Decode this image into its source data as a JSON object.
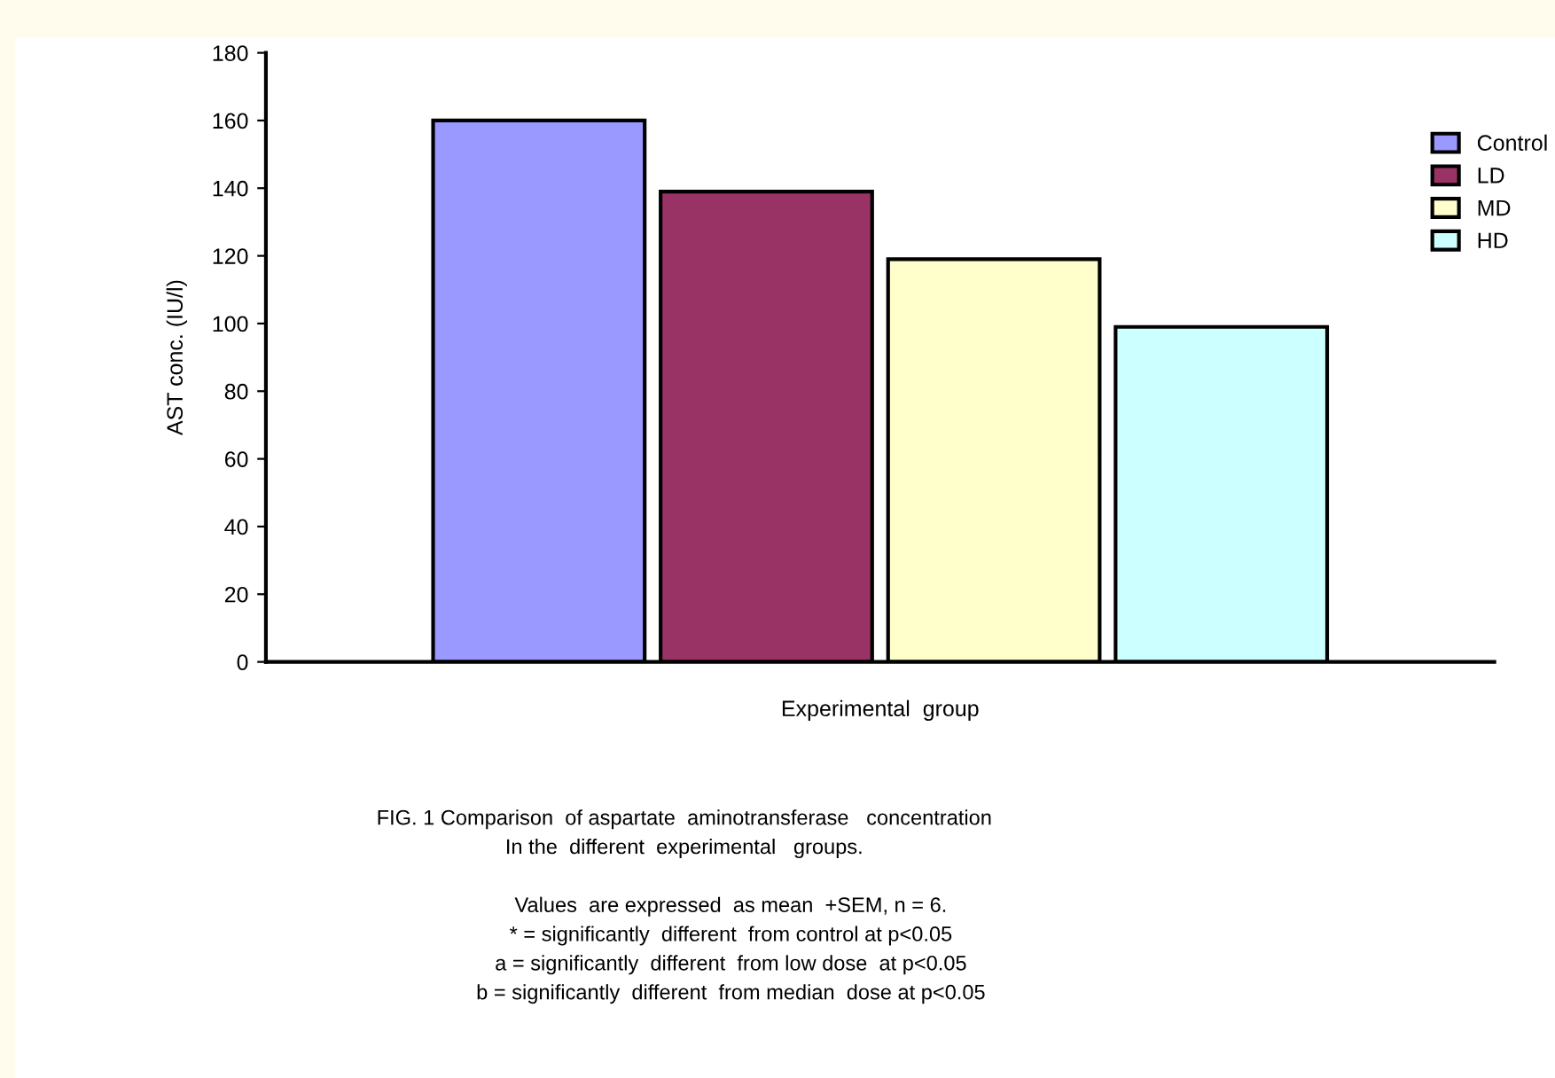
{
  "chart_data": {
    "type": "bar",
    "xlabel": "Experimental  group",
    "ylabel": "AST conc. (IU/l)",
    "categories": [
      null
    ],
    "series": [
      {
        "name": "Control",
        "color": "#9999ff",
        "values": [
          160
        ]
      },
      {
        "name": "LD",
        "color": "#993366",
        "values": [
          139
        ]
      },
      {
        "name": "MD",
        "color": "#ffffcc",
        "values": [
          119
        ]
      },
      {
        "name": "HD",
        "color": "#ccffff",
        "values": [
          99
        ]
      }
    ],
    "ylim": [
      0,
      180
    ],
    "yticks": [
      0,
      20,
      40,
      60,
      80,
      100,
      120,
      140,
      160,
      180
    ],
    "grid": false,
    "legend": "top right",
    "annotations": [
      "FIG. 1 Comparison  of aspartate  aminotransferase   concentration",
      "In the  different  experimental   groups.",
      "Values  are expressed  as mean  +SEM, n = 6.",
      "* = significantly  different  from control at p<0.05",
      "a = significantly  different  from low dose  at p<0.05",
      "b = significantly  different  from median  dose at p<0.05"
    ]
  }
}
